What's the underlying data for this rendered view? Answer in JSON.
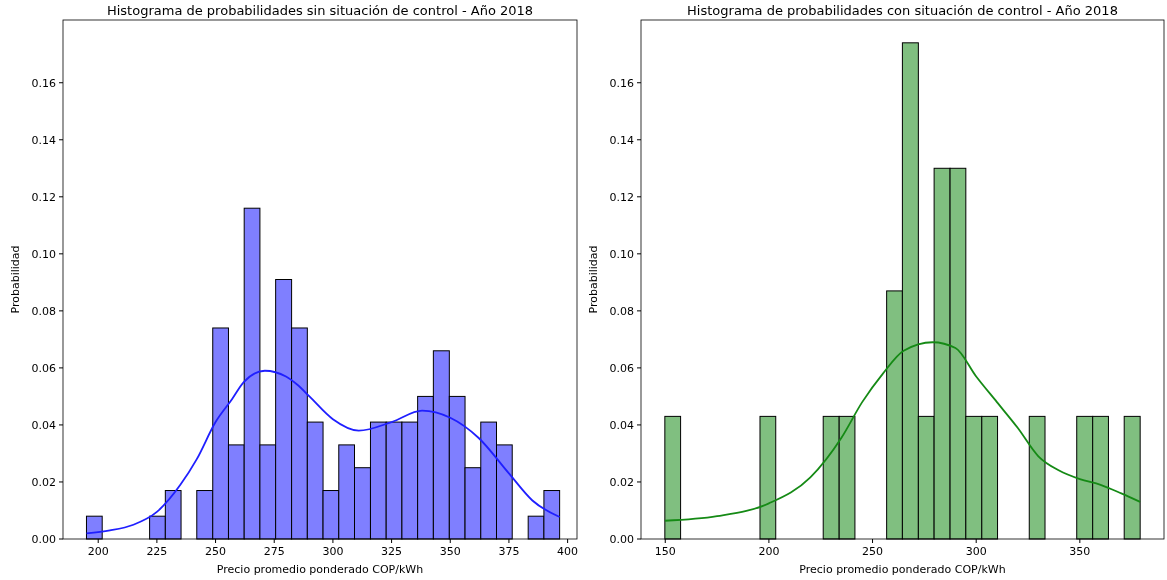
{
  "chart_data": [
    {
      "type": "histogram",
      "title": "Histograma de probabilidades sin situación de control - Año 2018",
      "xlabel": "Precio promedio ponderado COP/kWh",
      "ylabel": "Probabilidad",
      "xlim": [
        185,
        404
      ],
      "ylim": [
        0,
        0.182
      ],
      "xticks": [
        200,
        225,
        250,
        275,
        300,
        325,
        350,
        375,
        400
      ],
      "yticks": [
        {
          "value": 0,
          "label": "0.00"
        },
        {
          "value": 0.02,
          "label": "0.02"
        },
        {
          "value": 0.04,
          "label": "0.04"
        },
        {
          "value": 0.06,
          "label": "0.06"
        },
        {
          "value": 0.08,
          "label": "0.08"
        },
        {
          "value": 0.1,
          "label": "0.10"
        },
        {
          "value": 0.12,
          "label": "0.12"
        },
        {
          "value": 0.14,
          "label": "0.14"
        },
        {
          "value": 0.16,
          "label": "0.16"
        }
      ],
      "grid": false,
      "series": [
        {
          "color": "#7f7fff",
          "bins": [
            195.0,
            201.7,
            208.4,
            215.2,
            221.9,
            228.6,
            235.3,
            242.0,
            248.8,
            255.5,
            262.2,
            268.9,
            275.6,
            282.4,
            289.1,
            295.8,
            302.5,
            309.2,
            316.0,
            322.7,
            329.4,
            336.1,
            342.8,
            349.6,
            356.3,
            363.0,
            369.7,
            376.4,
            383.2,
            389.9,
            396.6
          ],
          "values": [
            0.008,
            0,
            0,
            0,
            0.008,
            0.017,
            0,
            0.017,
            0.074,
            0.033,
            0.116,
            0.033,
            0.091,
            0.074,
            0.041,
            0.017,
            0.033,
            0.025,
            0.041,
            0.041,
            0.041,
            0.05,
            0.066,
            0.05,
            0.025,
            0.041,
            0.033,
            0,
            0.008,
            0.017
          ]
        },
        {
          "type": "line",
          "color": "#1f1fff",
          "x": [
            195,
            205,
            215,
            225,
            235,
            242,
            250,
            257,
            262,
            271,
            280,
            285,
            290,
            300,
            311,
            325,
            338,
            350,
            362,
            375,
            385,
            396.6
          ],
          "values": [
            0.002,
            0.003,
            0.005,
            0.0095,
            0.019,
            0.028,
            0.041,
            0.049,
            0.055,
            0.059,
            0.057,
            0.054,
            0.05,
            0.042,
            0.038,
            0.041,
            0.045,
            0.0425,
            0.0355,
            0.023,
            0.0135,
            0.0077
          ]
        }
      ]
    },
    {
      "type": "histogram",
      "title": "Histograma de probabilidades con situación de control - Año 2018",
      "xlabel": "Precio promedio ponderado COP/kWh",
      "ylabel": "Probabilidad",
      "xlim": [
        138.3,
        390.6
      ],
      "ylim": [
        0,
        0.182
      ],
      "xticks": [
        150,
        200,
        250,
        300,
        350
      ],
      "yticks": [
        {
          "value": 0,
          "label": "0.00"
        },
        {
          "value": 0.02,
          "label": "0.02"
        },
        {
          "value": 0.04,
          "label": "0.04"
        },
        {
          "value": 0.06,
          "label": "0.06"
        },
        {
          "value": 0.08,
          "label": "0.08"
        },
        {
          "value": 0.1,
          "label": "0.10"
        },
        {
          "value": 0.12,
          "label": "0.12"
        },
        {
          "value": 0.14,
          "label": "0.14"
        },
        {
          "value": 0.16,
          "label": "0.16"
        }
      ],
      "grid": false,
      "series": [
        {
          "color": "#80bf80",
          "bins": [
            149.8,
            157.4,
            165.1,
            172.7,
            180.4,
            188.0,
            195.7,
            203.3,
            210.9,
            218.6,
            226.2,
            233.9,
            241.5,
            249.2,
            256.8,
            264.4,
            272.1,
            279.7,
            287.4,
            295.0,
            302.7,
            310.3,
            317.9,
            325.6,
            333.2,
            340.9,
            348.5,
            356.2,
            363.8,
            371.4,
            379.1
          ],
          "values": [
            0.043,
            0,
            0,
            0,
            0,
            0,
            0.043,
            0,
            0,
            0,
            0.043,
            0.043,
            0,
            0,
            0.087,
            0.174,
            0.043,
            0.13,
            0.13,
            0.043,
            0.043,
            0,
            0,
            0.043,
            0,
            0,
            0.043,
            0.043,
            0,
            0.043
          ]
        },
        {
          "type": "line",
          "color": "#158a15",
          "x": [
            149.8,
            175,
            200,
            220,
            235,
            245,
            255,
            265,
            279,
            290,
            300,
            310,
            320,
            330,
            340,
            350,
            360,
            370,
            379.1
          ],
          "values": [
            0.0064,
            0.008,
            0.0125,
            0.0216,
            0.0355,
            0.048,
            0.058,
            0.066,
            0.069,
            0.067,
            0.057,
            0.048,
            0.039,
            0.029,
            0.024,
            0.021,
            0.019,
            0.016,
            0.013
          ]
        }
      ]
    }
  ]
}
